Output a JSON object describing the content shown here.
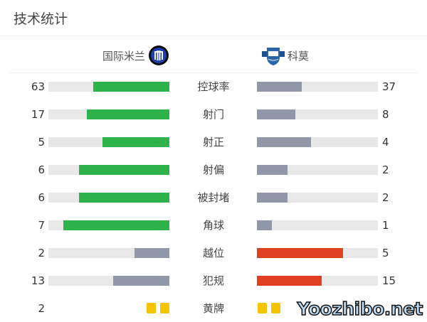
{
  "title": "技术统计",
  "home": {
    "name": "国际米兰",
    "icon": "inter-crest-icon"
  },
  "away": {
    "name": "科莫",
    "icon": "como-crest-icon"
  },
  "colors": {
    "green": "#2db34a",
    "gray": "#8f97a8",
    "red": "#e0401f",
    "track": "#e8e8e8",
    "yellow": "#f5c400"
  },
  "stats": [
    {
      "label": "控球率",
      "home": "63",
      "away": "37",
      "hv": 63,
      "av": 37,
      "hc": "green",
      "ac": "gray"
    },
    {
      "label": "射门",
      "home": "17",
      "away": "8",
      "hv": 17,
      "av": 8,
      "hc": "green",
      "ac": "gray"
    },
    {
      "label": "射正",
      "home": "5",
      "away": "4",
      "hv": 5,
      "av": 4,
      "hc": "green",
      "ac": "gray"
    },
    {
      "label": "射偏",
      "home": "6",
      "away": "2",
      "hv": 6,
      "av": 2,
      "hc": "green",
      "ac": "gray"
    },
    {
      "label": "被封堵",
      "home": "6",
      "away": "2",
      "hv": 6,
      "av": 2,
      "hc": "green",
      "ac": "gray"
    },
    {
      "label": "角球",
      "home": "7",
      "away": "1",
      "hv": 7,
      "av": 1,
      "hc": "green",
      "ac": "gray"
    },
    {
      "label": "越位",
      "home": "2",
      "away": "5",
      "hv": 2,
      "av": 5,
      "hc": "gray",
      "ac": "red"
    },
    {
      "label": "犯规",
      "home": "13",
      "away": "15",
      "hv": 13,
      "av": 15,
      "hc": "gray",
      "ac": "red"
    }
  ],
  "yellow": {
    "label": "黄牌",
    "home": "2",
    "away": "",
    "home_cards": 2,
    "away_cards": 2
  },
  "watermark": "Yoozhibo.net"
}
